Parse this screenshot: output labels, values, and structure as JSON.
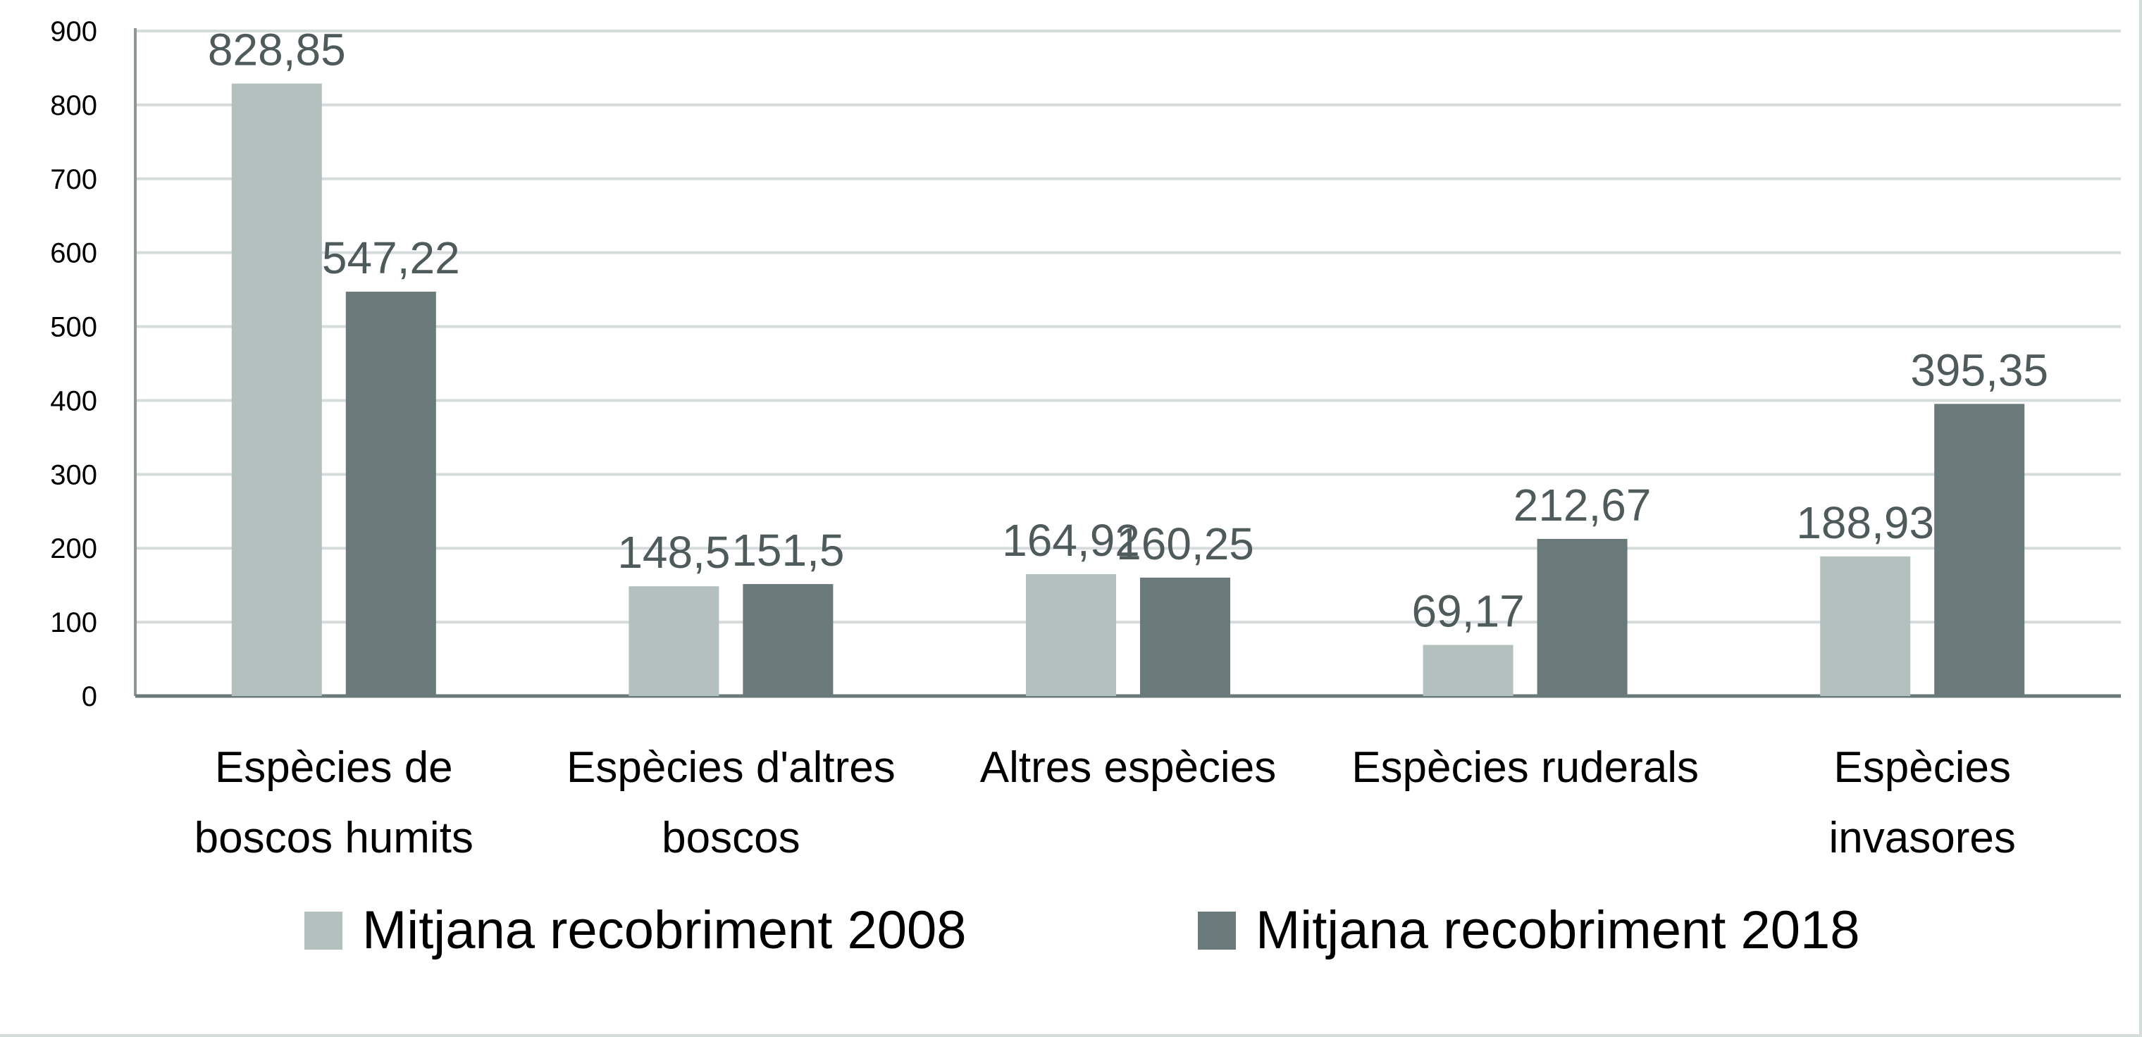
{
  "chart_data": {
    "type": "bar",
    "title": "",
    "xlabel": "",
    "ylabel": "",
    "ylim": [
      0,
      900
    ],
    "yticks": [
      "0",
      "100",
      "200",
      "300",
      "400",
      "500",
      "600",
      "700",
      "800",
      "900"
    ],
    "grid": true,
    "legend_position": "bottom",
    "categories": [
      [
        "Espècies de",
        "boscos humits"
      ],
      [
        "Espècies d'altres",
        "boscos"
      ],
      [
        "Altres espècies"
      ],
      [
        "Espècies ruderals"
      ],
      [
        "Espècies",
        "invasores"
      ]
    ],
    "series": [
      {
        "name": "Mitjana recobriment 2008",
        "color": "#b4c0be",
        "values": [
          828.85,
          148.5,
          164.92,
          69.17,
          188.93
        ],
        "labels": [
          "828,85",
          "148,5",
          "164,92",
          "69,17",
          "188,93"
        ]
      },
      {
        "name": "Mitjana recobriment 2018",
        "color": "#6a7979",
        "values": [
          547.22,
          151.5,
          160.25,
          212.67,
          395.35
        ],
        "labels": [
          "547,22",
          "151,5",
          "160,25",
          "212,67",
          "395,35"
        ]
      }
    ]
  }
}
